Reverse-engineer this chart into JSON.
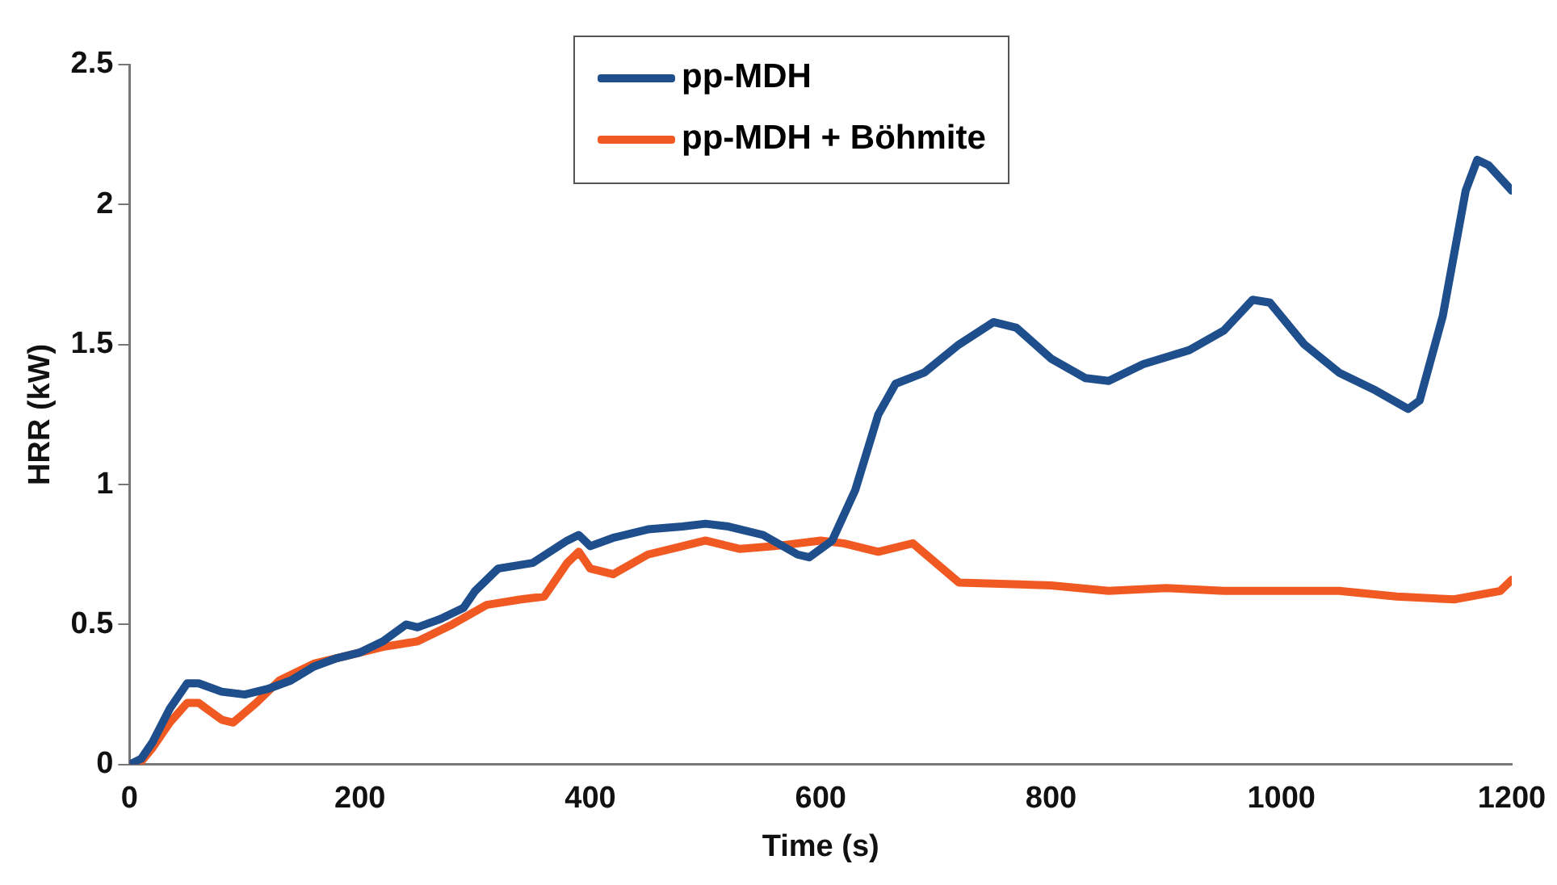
{
  "chart_data": {
    "type": "line",
    "xlabel": "Time (s)",
    "ylabel": "HRR (kW)",
    "xlim": [
      0,
      1200
    ],
    "xticks": [
      0,
      200,
      400,
      600,
      800,
      1000,
      1200
    ],
    "ylim": [
      0,
      2.5
    ],
    "yticks": [
      0,
      0.5,
      1,
      1.5,
      2,
      2.5
    ],
    "grid": false,
    "legend": "top",
    "marker": "none",
    "line_style": "solid",
    "series": [
      {
        "name": "pp-MDH",
        "color": "#1f4e8c",
        "x": [
          0,
          10,
          20,
          35,
          50,
          60,
          80,
          100,
          120,
          140,
          160,
          180,
          200,
          220,
          240,
          250,
          270,
          290,
          300,
          320,
          350,
          380,
          390,
          400,
          420,
          450,
          480,
          500,
          520,
          550,
          580,
          590,
          610,
          630,
          650,
          665,
          690,
          720,
          750,
          770,
          800,
          830,
          850,
          880,
          920,
          950,
          975,
          990,
          1020,
          1050,
          1080,
          1110,
          1120,
          1140,
          1160,
          1170,
          1180,
          1200
        ],
        "values": [
          0,
          0.02,
          0.08,
          0.2,
          0.29,
          0.29,
          0.26,
          0.25,
          0.27,
          0.3,
          0.35,
          0.38,
          0.4,
          0.44,
          0.5,
          0.49,
          0.52,
          0.56,
          0.62,
          0.7,
          0.72,
          0.8,
          0.82,
          0.78,
          0.81,
          0.84,
          0.85,
          0.86,
          0.85,
          0.82,
          0.75,
          0.74,
          0.8,
          0.98,
          1.25,
          1.36,
          1.4,
          1.5,
          1.58,
          1.56,
          1.45,
          1.38,
          1.37,
          1.43,
          1.48,
          1.55,
          1.66,
          1.65,
          1.5,
          1.4,
          1.34,
          1.27,
          1.3,
          1.6,
          2.05,
          2.16,
          2.14,
          2.05
        ]
      },
      {
        "name": "pp-MDH + Böhmite",
        "color": "#f05a22",
        "x": [
          0,
          10,
          20,
          35,
          50,
          60,
          80,
          90,
          110,
          130,
          160,
          190,
          220,
          250,
          280,
          310,
          340,
          360,
          380,
          390,
          400,
          420,
          450,
          480,
          500,
          530,
          560,
          600,
          620,
          650,
          680,
          700,
          720,
          800,
          850,
          900,
          950,
          1000,
          1050,
          1100,
          1150,
          1190,
          1200
        ],
        "values": [
          0,
          0.01,
          0.06,
          0.15,
          0.22,
          0.22,
          0.16,
          0.15,
          0.22,
          0.3,
          0.36,
          0.39,
          0.42,
          0.44,
          0.5,
          0.57,
          0.59,
          0.6,
          0.72,
          0.76,
          0.7,
          0.68,
          0.75,
          0.78,
          0.8,
          0.77,
          0.78,
          0.8,
          0.79,
          0.76,
          0.79,
          0.72,
          0.65,
          0.64,
          0.62,
          0.63,
          0.62,
          0.62,
          0.62,
          0.6,
          0.59,
          0.62,
          0.66
        ]
      }
    ]
  }
}
